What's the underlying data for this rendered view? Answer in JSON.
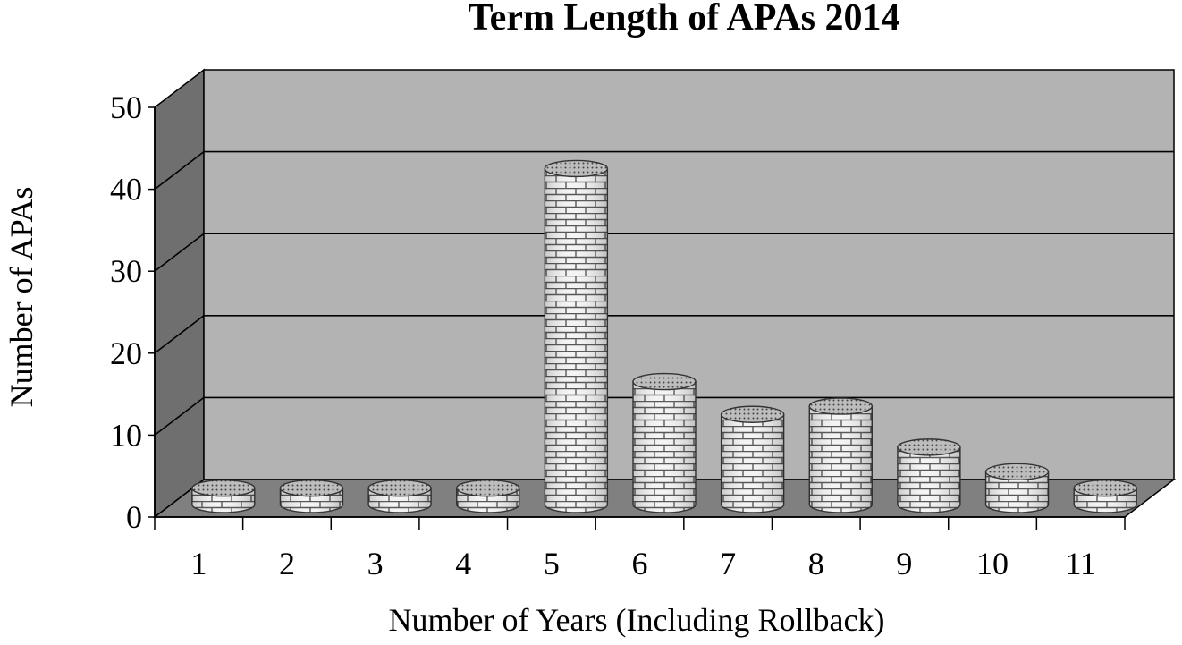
{
  "chart_data": {
    "type": "bar",
    "style": "3d-cylinder",
    "title": "Term Length of APAs 2014",
    "xlabel": "Number of Years (Including Rollback)",
    "ylabel": "Number of APAs",
    "categories": [
      "1",
      "2",
      "3",
      "4",
      "5",
      "6",
      "7",
      "8",
      "9",
      "10",
      "11"
    ],
    "values": [
      2,
      2,
      2,
      2,
      41,
      15,
      11,
      12,
      7,
      4,
      2
    ],
    "ylim": [
      0,
      50
    ],
    "yticks": [
      "0",
      "10",
      "20",
      "30",
      "40",
      "50"
    ],
    "grid": true,
    "legend": "none",
    "colors": {
      "back_wall": "#b3b3b3",
      "side_wall": "#6f6f6f",
      "floor": "#808080",
      "bar_body": "#f2f2f2",
      "bar_pattern": "#555555",
      "bar_top": "#b0b0b0"
    }
  }
}
